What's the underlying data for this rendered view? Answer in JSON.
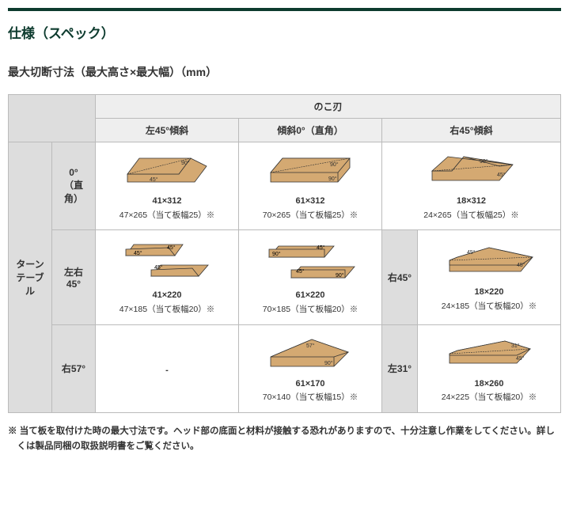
{
  "title": "仕様（スペック）",
  "subtitle": "最大切断寸法（最大高さ×最大幅）（mm）",
  "colgroup": "のこ刃",
  "cols": [
    "左45°傾斜",
    "傾斜0°（直角）",
    "右45°傾斜"
  ],
  "rowgroup": "ターンテーブル",
  "rows": [
    {
      "h": "0°（直角）",
      "c": [
        {
          "svg": "l45-0",
          "d1": "41×312",
          "d2": "47×265（当て板幅25）※"
        },
        {
          "svg": "c0-0",
          "d1": "61×312",
          "d2": "70×265（当て板幅25）※"
        },
        {
          "svg": "r45-0",
          "d1": "18×312",
          "d2": "24×265（当て板幅25）※"
        }
      ]
    },
    {
      "h": "左右45°",
      "hr": "右45°",
      "c": [
        {
          "svg": "l45-45",
          "d1": "41×220",
          "d2": "47×185（当て板幅20）※"
        },
        {
          "svg": "c0-45",
          "d1": "61×220",
          "d2": "70×185（当て板幅20）※"
        },
        {
          "svg": "r45-45",
          "d1": "18×220",
          "d2": "24×185（当て板幅20）※"
        }
      ]
    },
    {
      "h": "右57°",
      "hr": "左31°",
      "c": [
        {
          "svg": "",
          "d1": "-",
          "d2": ""
        },
        {
          "svg": "c0-57",
          "d1": "61×170",
          "d2": "70×140（当て板幅15）※"
        },
        {
          "svg": "r45-31",
          "d1": "18×260",
          "d2": "24×225（当て板幅20）※"
        }
      ]
    }
  ],
  "note": "※ 当て板を取付けた時の最大寸法です。ヘッド部の底面と材料が接触する恐れがありますので、十分注意し作業をしてください。詳しくは製品同梱の取扱説明書をご覧ください。",
  "colors": {
    "wood": "#d4a972",
    "edge": "#333",
    "bg": "#fff"
  }
}
